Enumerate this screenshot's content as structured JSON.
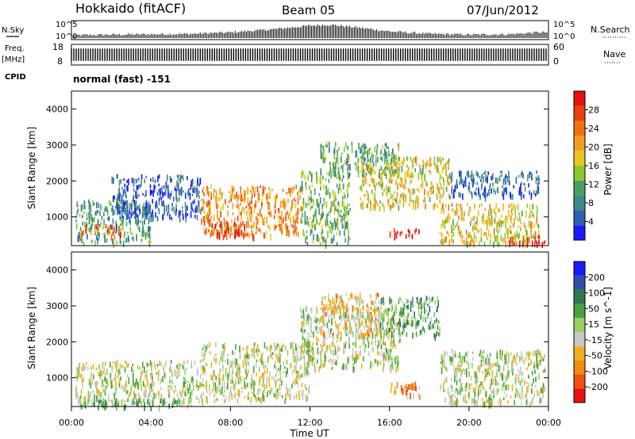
{
  "header": {
    "station": "Hokkaido (fitACF)",
    "beam": "Beam 05",
    "date": "07/Jun/2012"
  },
  "side_labels": {
    "nsky": "N.Sky",
    "freq": "Freq.",
    "freq_unit": "[MHz]",
    "cpid": "CPID",
    "nsearch": "N.Search",
    "nave": "Nave"
  },
  "cpid_text": "normal (fast) -151",
  "axis_labels": {
    "slant_range_power": "Slant Range [km]",
    "slant_range_velocity": "Slant Range [km]",
    "time": "Time UT"
  },
  "colors": {
    "power_scale": [
      "#1a1aff",
      "#2f5fb0",
      "#3f8a8a",
      "#48a060",
      "#8cc830",
      "#e8c820",
      "#f0a020",
      "#f07010",
      "#e84010",
      "#e81010"
    ],
    "velocity_scale": [
      "#1a1aff",
      "#2f4fa8",
      "#2e7a4a",
      "#49a040",
      "#98d060",
      "#c8c8c8",
      "#f0b020",
      "#f08a10",
      "#f05010",
      "#e81010"
    ]
  },
  "chart_data": [
    {
      "type": "line",
      "panel": "N.Sky / N.Search",
      "x_labels": [
        "00:00",
        "04:00",
        "08:00",
        "12:00",
        "16:00",
        "20:00",
        "00:00"
      ],
      "xlim": [
        0,
        24
      ],
      "ytick_labels_left": [
        "10^5",
        "10^0"
      ],
      "ytick_labels_right": [
        "10^5",
        "10^0"
      ],
      "x": [
        0,
        2,
        4,
        6,
        8,
        10,
        11,
        12,
        13,
        14,
        15,
        16,
        18,
        20,
        22,
        23.5
      ],
      "series": [
        {
          "values": [
            0.15,
            0.18,
            0.2,
            0.22,
            0.3,
            0.45,
            0.55,
            0.65,
            0.7,
            0.6,
            0.48,
            0.35,
            0.22,
            0.18,
            0.2,
            0.3
          ]
        }
      ]
    },
    {
      "type": "line",
      "panel": "Freq / Nave",
      "xlim": [
        0,
        24
      ],
      "ytick_labels_left": [
        "18",
        "8"
      ],
      "ytick_labels_right": [
        "60",
        "0"
      ],
      "freq_band": {
        "min": 10,
        "max": 16
      }
    },
    {
      "type": "heatmap",
      "panel": "Power",
      "ylabel": "Slant Range [km]",
      "ylim": [
        200,
        4500
      ],
      "yticks": [
        1000,
        2000,
        3000,
        4000
      ],
      "xlim": [
        0,
        24
      ],
      "colorbar": {
        "label": "Power [dB]",
        "ticks": [
          "4",
          "8",
          "12",
          "16",
          "20",
          "24",
          "28"
        ]
      },
      "regions": [
        {
          "t0": 0.2,
          "t1": 4.0,
          "r0": 300,
          "r1": 1500,
          "level": 0.3
        },
        {
          "t0": 0.3,
          "t1": 2.5,
          "r0": 500,
          "r1": 800,
          "level": 0.75
        },
        {
          "t0": 2.0,
          "t1": 6.5,
          "r0": 1000,
          "r1": 2200,
          "level": 0.15
        },
        {
          "t0": 6.5,
          "t1": 11.5,
          "r0": 500,
          "r1": 1900,
          "level": 0.7
        },
        {
          "t0": 7.0,
          "t1": 9.0,
          "r0": 500,
          "r1": 900,
          "level": 0.95
        },
        {
          "t0": 11.5,
          "t1": 14.0,
          "r0": 300,
          "r1": 2300,
          "level": 0.4
        },
        {
          "t0": 12.5,
          "t1": 16.5,
          "r0": 2200,
          "r1": 3100,
          "level": 0.35
        },
        {
          "t0": 14.5,
          "t1": 19.0,
          "r0": 1300,
          "r1": 2700,
          "level": 0.55
        },
        {
          "t0": 16.0,
          "t1": 17.6,
          "r0": 500,
          "r1": 700,
          "level": 1.0
        },
        {
          "t0": 18.5,
          "t1": 23.5,
          "r0": 300,
          "r1": 1400,
          "level": 0.55
        },
        {
          "t0": 19.0,
          "t1": 23.5,
          "r0": 1600,
          "r1": 2300,
          "level": 0.2
        },
        {
          "t0": 22.0,
          "t1": 23.9,
          "r0": 250,
          "r1": 500,
          "level": 0.9
        }
      ]
    },
    {
      "type": "heatmap",
      "panel": "Velocity",
      "ylabel": "Slant Range [km]",
      "ylim": [
        200,
        4500
      ],
      "yticks": [
        1000,
        2000,
        3000,
        4000
      ],
      "xlim": [
        0,
        24
      ],
      "xticks": [
        "00:00",
        "04:00",
        "08:00",
        "12:00",
        "16:00",
        "20:00",
        "00:00"
      ],
      "xlabel": "Time UT",
      "colorbar": {
        "label": "Velocity [m s^-1]",
        "ticks": [
          "200",
          "100",
          "50",
          "15",
          "-15",
          "-50",
          "-100",
          "-200"
        ]
      },
      "regions": [
        {
          "t0": 0.2,
          "t1": 6.5,
          "r0": 300,
          "r1": 1500,
          "level": 0.5
        },
        {
          "t0": 0.2,
          "t1": 6.0,
          "r0": 250,
          "r1": 450,
          "level": 0.35
        },
        {
          "t0": 6.5,
          "t1": 12.0,
          "r0": 400,
          "r1": 2000,
          "level": 0.52
        },
        {
          "t0": 11.5,
          "t1": 16.5,
          "r0": 1300,
          "r1": 3000,
          "level": 0.5
        },
        {
          "t0": 15.5,
          "t1": 18.5,
          "r0": 2200,
          "r1": 3300,
          "level": 0.35
        },
        {
          "t0": 16.0,
          "t1": 17.6,
          "r0": 500,
          "r1": 900,
          "level": 0.72
        },
        {
          "t0": 18.5,
          "t1": 23.8,
          "r0": 300,
          "r1": 1800,
          "level": 0.5
        },
        {
          "t0": 12.5,
          "t1": 15.5,
          "r0": 2200,
          "r1": 3400,
          "level": 0.65
        }
      ]
    }
  ]
}
